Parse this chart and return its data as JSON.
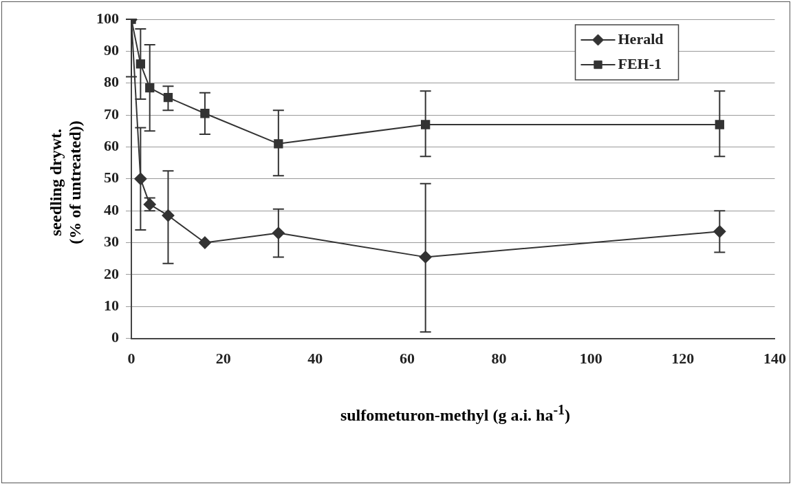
{
  "chart_data": {
    "type": "line",
    "xlabel": "sulfometuron-methyl (g a.i. ha$^{-1}$)",
    "ylabel": "seedling drywt.\n(% of untreated))",
    "x": [
      0,
      2,
      4,
      8,
      16,
      32,
      64,
      128
    ],
    "series": [
      {
        "name": "Herald",
        "color": "#333333",
        "marker": "diamond",
        "values": [
          100,
          50,
          42,
          38.5,
          30,
          33,
          25.5,
          33.5
        ],
        "errors": [
          [
            82,
            100
          ],
          [
            34,
            66
          ],
          [
            40,
            44
          ],
          [
            23.5,
            52.5
          ],
          null,
          [
            25.5,
            40.5
          ],
          [
            2,
            48.5
          ],
          [
            27,
            40
          ]
        ]
      },
      {
        "name": "FEH-1",
        "color": "#333333",
        "marker": "square",
        "values": [
          100,
          86,
          78.5,
          75.5,
          70.5,
          61,
          67,
          67
        ],
        "errors": [
          null,
          [
            75,
            97
          ],
          [
            65,
            92
          ],
          [
            71.5,
            79
          ],
          [
            64,
            77
          ],
          [
            51,
            71.5
          ],
          [
            57,
            77.5
          ],
          [
            57,
            77.5
          ]
        ]
      }
    ],
    "xlim": [
      0,
      140
    ],
    "xticks": [
      0,
      20,
      40,
      60,
      80,
      100,
      120,
      140
    ],
    "ylim": [
      0,
      100
    ],
    "yticks": [
      0,
      10,
      20,
      30,
      40,
      50,
      60,
      70,
      80,
      90,
      100
    ],
    "grid": "y",
    "legend": "top right",
    "line_style": "solid"
  }
}
